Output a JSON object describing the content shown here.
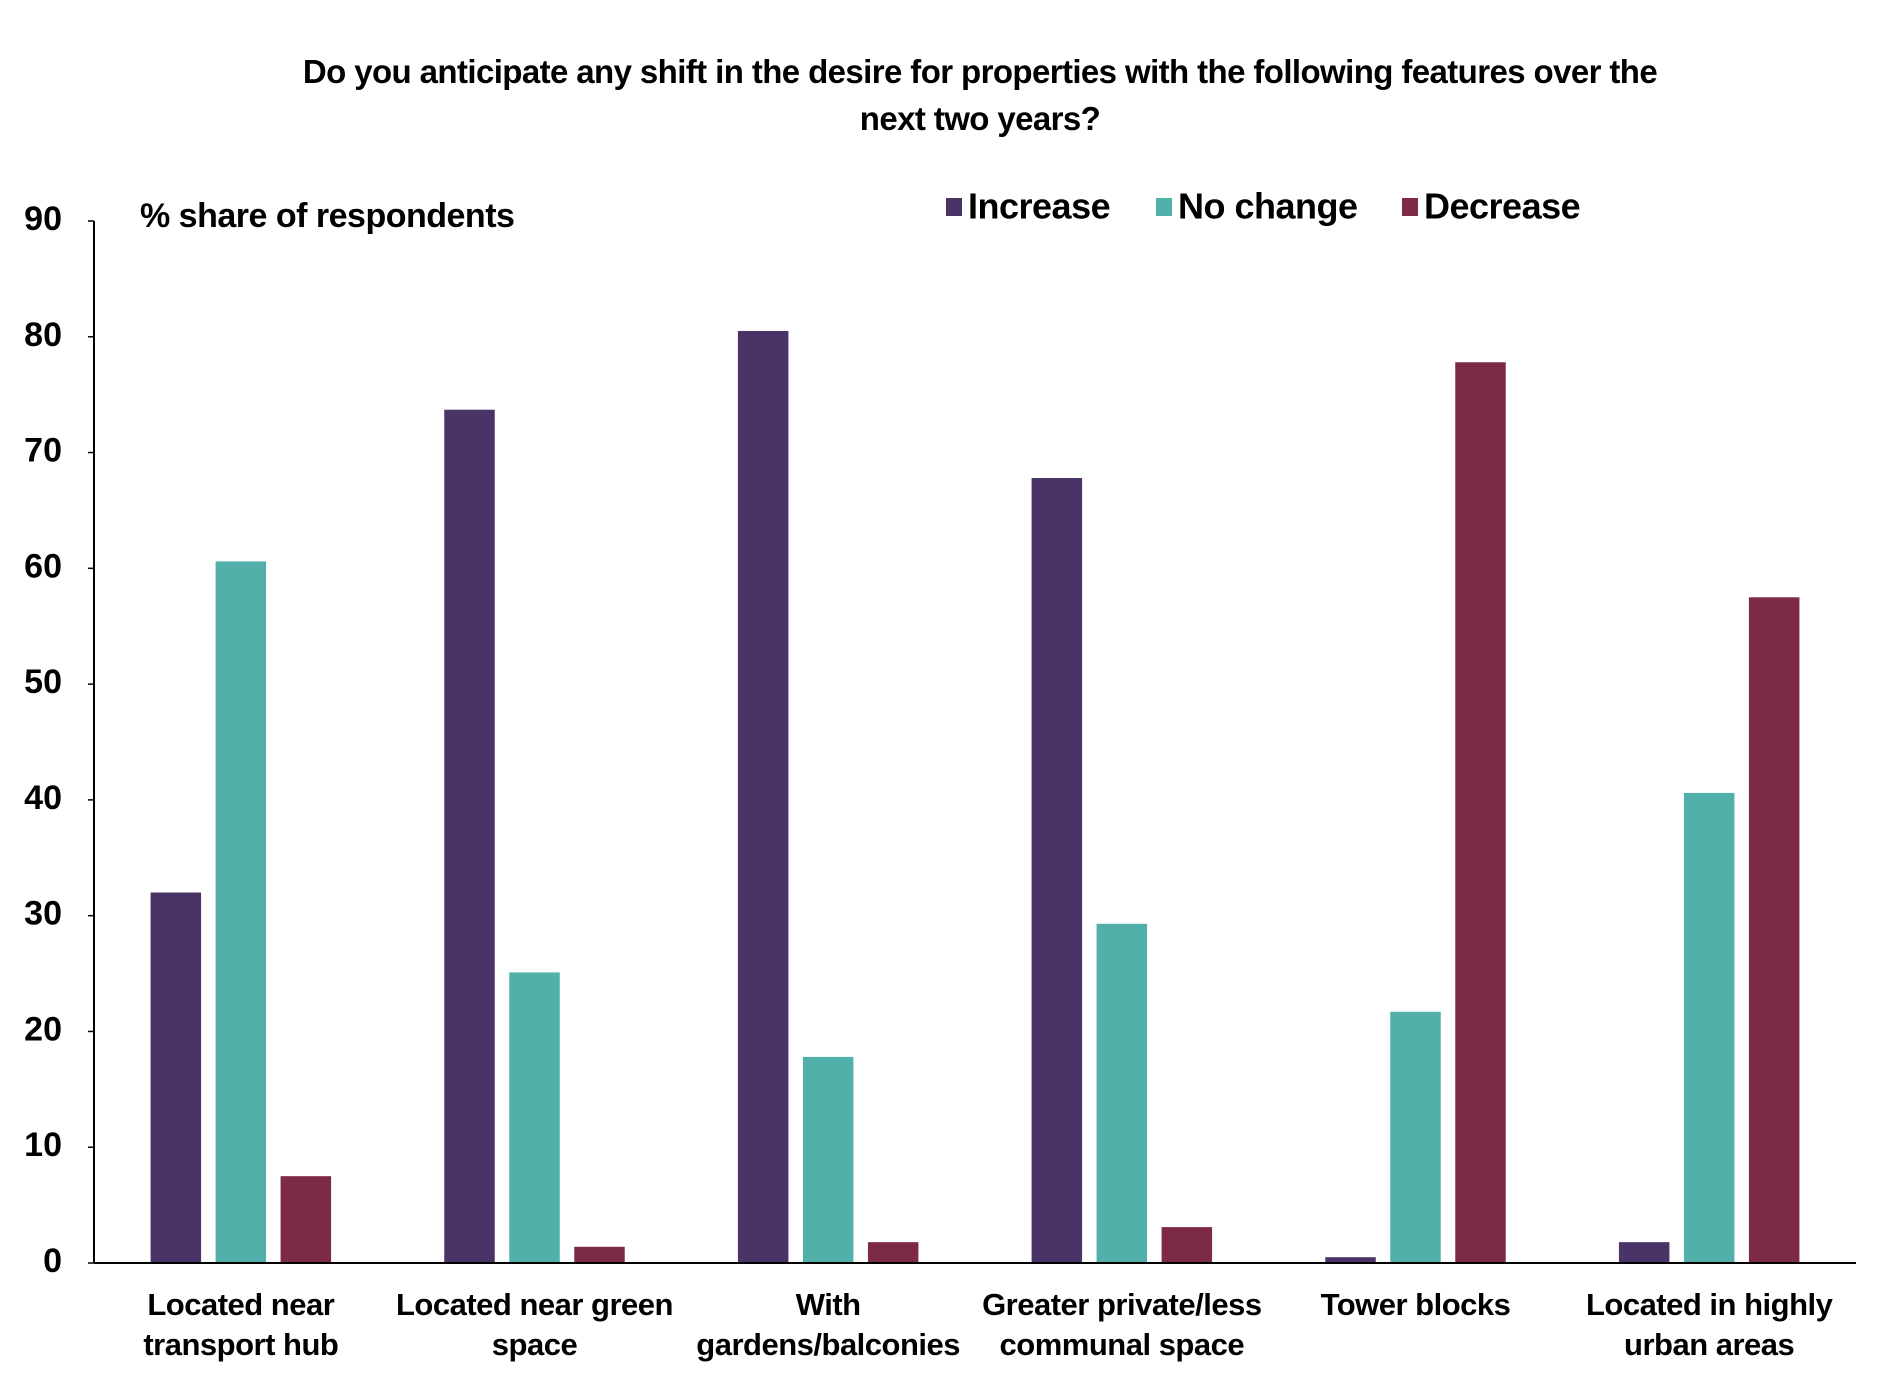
{
  "chart_data": {
    "type": "bar",
    "title": "Do you anticipate any shift in the desire for properties with the following features over the\nnext two years?",
    "y_axis_label": "% share of respondents",
    "categories": [
      "Located near\ntransport hub",
      "Located near green\nspace",
      "With\ngardens/balconies",
      "Greater private/less\ncommunal space",
      "Tower blocks",
      "Located in highly\nurban areas"
    ],
    "series": [
      {
        "name": "Increase",
        "color": "#4a3366",
        "values": [
          32,
          73.7,
          80.5,
          67.8,
          0.5,
          1.8
        ]
      },
      {
        "name": "No change",
        "color": "#52b0aa",
        "values": [
          60.6,
          25.1,
          17.8,
          29.3,
          21.7,
          40.6
        ]
      },
      {
        "name": "Decrease",
        "color": "#7d2b45",
        "values": [
          7.5,
          1.4,
          1.8,
          3.1,
          77.8,
          57.5
        ]
      }
    ],
    "ylim": [
      0,
      90
    ],
    "yticks": [
      0,
      10,
      20,
      30,
      40,
      50,
      60,
      70,
      80,
      90
    ],
    "grid": false,
    "legend": "top"
  }
}
